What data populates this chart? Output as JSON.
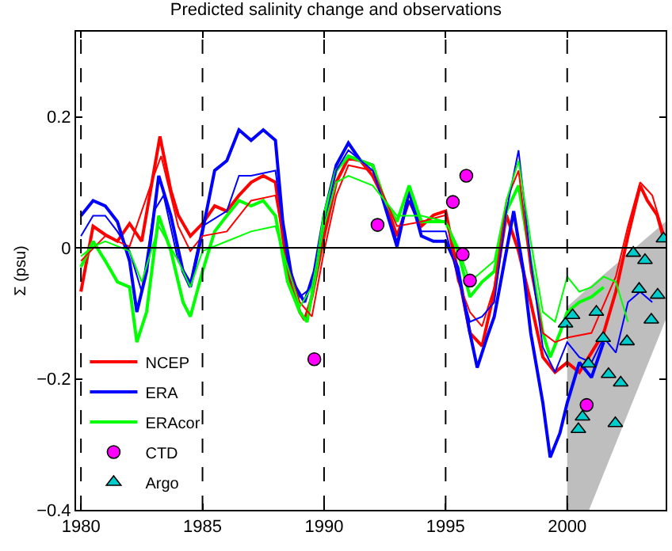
{
  "chart_data": {
    "type": "line",
    "title": "Predicted salinity change and observations",
    "ylabel": "Σ (psu)",
    "xlim": [
      1979.8,
      2004.05
    ],
    "xticks": [
      1980,
      1985,
      1990,
      1995,
      2000
    ],
    "ylim": [
      -0.4,
      0.33
    ],
    "yticks": [
      {
        "value": -0.4,
        "label": "−0.4"
      },
      {
        "value": -0.2,
        "label": "−0.2"
      },
      0,
      0.2
    ],
    "grid": false,
    "legend": "bottom left",
    "marker": "none",
    "line_style": "solid",
    "ref_lines": [
      {
        "axis": "y",
        "value": 0,
        "color": "#000000",
        "line_style": "solid"
      },
      {
        "axis": "x",
        "value": 1980,
        "color": "#000000",
        "line_style": "dashed"
      },
      {
        "axis": "x",
        "value": 1985,
        "color": "#000000",
        "line_style": "dashed"
      },
      {
        "axis": "x",
        "value": 1990,
        "color": "#000000",
        "line_style": "dashed"
      },
      {
        "axis": "x",
        "value": 1995,
        "color": "#000000",
        "line_style": "dashed"
      },
      {
        "axis": "x",
        "value": 2000,
        "color": "#000000",
        "line_style": "dashed"
      }
    ],
    "series": [
      {
        "type": "area",
        "color": "#bebebe",
        "x": [
          2000,
          2000.9,
          2004.05
        ],
        "values": [
          null,
          null,
          null
        ],
        "lower": [
          -0.4,
          -0.4,
          -0.11
        ],
        "upper": [
          -0.09,
          -0.06,
          0.04
        ]
      },
      {
        "name": "NCEP",
        "color": "#ff0000",
        "x": [
          1980,
          1980.5,
          1981,
          1981.5,
          1982,
          1982.5,
          1983.25,
          1983.7,
          1984,
          1984.5,
          1985,
          1985.5,
          1986,
          1986.5,
          1987,
          1987.5,
          1988,
          1988.5,
          1989,
          1989.2,
          1989.5,
          1990,
          1990.5,
          1991,
          1991.5,
          1992,
          1992.5,
          1993,
          1993.5,
          1994,
          1994.5,
          1995,
          1995.5,
          1996,
          1996.5,
          1997,
          1997.5,
          1998,
          1998.5,
          1999,
          1999.5,
          2000,
          2000.5,
          2001,
          2001.5,
          2002,
          2002.5,
          2003,
          2003.3,
          2003.7,
          2004
        ],
        "values": [
          -0.067,
          0.033,
          0.02,
          0.01,
          0.037,
          0.01,
          0.17,
          0.087,
          0.05,
          0.018,
          0.037,
          0.064,
          0.056,
          0.08,
          0.1,
          0.11,
          0.1,
          -0.036,
          -0.098,
          -0.11,
          -0.075,
          0.018,
          0.1,
          0.137,
          0.133,
          0.11,
          0.072,
          0.018,
          0.072,
          0.033,
          0.05,
          0.056,
          -0.036,
          -0.13,
          -0.15,
          -0.067,
          0.05,
          -0.005,
          -0.083,
          -0.167,
          -0.19,
          -0.175,
          -0.19,
          -0.16,
          -0.13,
          -0.067,
          0.018,
          0.095,
          0.072,
          0.05,
          0.01
        ]
      },
      {
        "name": "ERA",
        "color": "#0000ff",
        "x": [
          1980,
          1980.5,
          1981,
          1981.5,
          1982,
          1982.3,
          1982.7,
          1983.2,
          1983.7,
          1984.2,
          1984.5,
          1985,
          1985.5,
          1986,
          1986.5,
          1987,
          1987.5,
          1988,
          1988.3,
          1988.7,
          1989.2,
          1989.6,
          1990,
          1990.5,
          1991,
          1991.5,
          1992,
          1992.5,
          1993,
          1993.5,
          1994,
          1994.5,
          1995,
          1995.5,
          1996,
          1996.3,
          1996.7,
          1997,
          1997.5,
          1997.8,
          1998.2,
          1998.5,
          1999,
          1999.3,
          1999.7,
          2000,
          2000.5,
          2001,
          2001.5
        ],
        "values": [
          0.049,
          0.072,
          0.064,
          0.04,
          -0.02,
          -0.098,
          -0.036,
          0.11,
          0.049,
          -0.036,
          -0.06,
          0.025,
          0.118,
          0.133,
          0.18,
          0.164,
          0.18,
          0.164,
          0.04,
          -0.052,
          -0.083,
          -0.036,
          0.049,
          0.126,
          0.16,
          0.133,
          0.126,
          0.064,
          0.002,
          0.087,
          0.018,
          0.01,
          0.01,
          -0.03,
          -0.13,
          -0.183,
          -0.137,
          -0.105,
          -0.005,
          0.056,
          -0.036,
          -0.13,
          -0.237,
          -0.32,
          -0.283,
          -0.237,
          -0.175,
          -0.198,
          -0.144
        ]
      },
      {
        "name": "ERAcor",
        "color": "#00ff00",
        "x": [
          1980,
          1980.5,
          1981,
          1981.5,
          1982,
          1982.3,
          1982.7,
          1983.2,
          1983.7,
          1984.2,
          1984.5,
          1985,
          1985.5,
          1986,
          1986.5,
          1987,
          1987.5,
          1988,
          1988.5,
          1989,
          1989.3,
          1989.7,
          1990,
          1990.5,
          1991,
          1992,
          1992.5,
          1993,
          1993.5,
          1994,
          1995,
          1995.5,
          1996,
          1996.5,
          1997,
          1997.5,
          1998,
          1998.5,
          1999,
          1999.3,
          1999.7,
          2000,
          2000.5,
          2001,
          2001.5
        ],
        "values": [
          -0.029,
          0.01,
          -0.02,
          -0.052,
          -0.06,
          -0.144,
          -0.098,
          0.049,
          -0.005,
          -0.083,
          -0.105,
          -0.036,
          0.025,
          0.049,
          0.072,
          0.064,
          0.072,
          0.049,
          -0.052,
          -0.098,
          -0.113,
          -0.029,
          0.049,
          0.118,
          0.14,
          0.126,
          0.072,
          0.04,
          0.095,
          0.04,
          0.04,
          -0.005,
          -0.075,
          -0.052,
          -0.036,
          0.056,
          0.095,
          -0.02,
          -0.13,
          -0.167,
          -0.13,
          -0.098,
          -0.083,
          -0.075,
          -0.06
        ]
      },
      {
        "color": "#ff0000",
        "x": [
          1980,
          1981,
          1982,
          1983,
          1983.3,
          1984,
          1984.5,
          1985,
          1986,
          1987,
          1988,
          1988.5,
          1989,
          1989.5,
          1990,
          1990.5,
          1991,
          1992,
          1993,
          1994,
          1995,
          1995.5,
          1996,
          1996.5,
          1997,
          1997.5,
          1998,
          1998.5,
          1999,
          1999.5,
          2000,
          2001,
          2002,
          2002.5,
          2003,
          2003.5,
          2004
        ],
        "values": [
          -0.02,
          0.018,
          0.002,
          0.11,
          0.14,
          0.033,
          -0.005,
          0.018,
          0.025,
          0.072,
          0.08,
          -0.02,
          -0.083,
          -0.105,
          -0.005,
          0.08,
          0.126,
          0.118,
          0.033,
          0.04,
          0.05,
          -0.05,
          -0.098,
          -0.12,
          -0.06,
          0.072,
          0.118,
          -0.036,
          -0.13,
          -0.144,
          -0.137,
          -0.13,
          -0.044,
          0.033,
          0.1,
          0.08,
          0.018
        ]
      },
      {
        "color": "#0000ff",
        "x": [
          1980,
          1980.5,
          1981,
          1981.5,
          1982,
          1982.5,
          1983,
          1983.4,
          1984,
          1984.5,
          1985,
          1986,
          1986.5,
          1987,
          1988,
          1988.5,
          1989,
          1989.5,
          1990,
          1990.5,
          1991,
          1992,
          1993,
          1993.5,
          1994,
          1995,
          1995.5,
          1996,
          1996.5,
          1997,
          1997.5,
          1998,
          1998.5,
          1999,
          1999.5,
          2000,
          2000.5,
          2001,
          2001.5,
          2002,
          2002.5,
          2003,
          2003.5
        ],
        "values": [
          0.018,
          0.049,
          0.049,
          0.025,
          -0.005,
          -0.067,
          0.056,
          0.08,
          -0.02,
          -0.052,
          0.033,
          0.056,
          0.11,
          0.11,
          0.118,
          -0.02,
          -0.075,
          -0.06,
          0.033,
          0.118,
          0.149,
          0.118,
          0.01,
          0.072,
          0.025,
          0.025,
          -0.044,
          -0.113,
          -0.105,
          -0.083,
          0.056,
          0.149,
          -0.02,
          -0.152,
          -0.19,
          -0.144,
          -0.167,
          -0.175,
          -0.137,
          -0.16,
          -0.083,
          -0.067,
          -0.083
        ]
      },
      {
        "color": "#00ff00",
        "x": [
          1980,
          1980.5,
          1981,
          1982,
          1982.5,
          1983.2,
          1984,
          1984.5,
          1985,
          1986,
          1987,
          1988,
          1988.5,
          1989,
          1989.5,
          1990,
          1990.5,
          1991,
          1992,
          1993,
          1994,
          1995,
          1995.5,
          1996,
          1996.5,
          1997,
          1997.5,
          1998,
          1998.5,
          1999,
          1999.5,
          2000,
          2000.5,
          2001,
          2001.5,
          2002,
          2002.5
        ],
        "values": [
          -0.013,
          0.002,
          0.01,
          -0.005,
          -0.052,
          0.033,
          -0.02,
          -0.06,
          -0.005,
          0.01,
          0.025,
          0.033,
          -0.029,
          -0.09,
          -0.06,
          0.033,
          0.1,
          0.11,
          0.095,
          0.049,
          0.049,
          0.04,
          0.002,
          -0.052,
          -0.036,
          -0.02,
          0.072,
          0.133,
          0.01,
          -0.098,
          -0.113,
          -0.044,
          -0.067,
          -0.06,
          -0.044,
          -0.052,
          -0.113
        ]
      },
      {
        "name": "CTD",
        "type": "scatter",
        "marker": "circle",
        "color": "#ff00ff",
        "x": [
          1989.6,
          1992.2,
          1995.3,
          1995.85,
          1995.7,
          1996,
          2000.8
        ],
        "values": [
          -0.17,
          0.035,
          0.07,
          0.11,
          -0.01,
          -0.05,
          -0.24
        ]
      },
      {
        "name": "Argo",
        "type": "scatter",
        "marker": "triangle",
        "color": "#00cccc",
        "x": [
          1999.93,
          2000.22,
          2001.2,
          2001.48,
          2000.87,
          2000.63,
          2000.46,
          2001.7,
          2002.2,
          2001.98,
          2002.46,
          2002.72,
          2003.2,
          2002.96,
          2003.46,
          2003.72,
          2003.96
        ],
        "values": [
          -0.116,
          -0.103,
          -0.098,
          -0.138,
          -0.177,
          -0.258,
          -0.277,
          -0.193,
          -0.206,
          -0.268,
          -0.143,
          -0.008,
          -0.019,
          -0.063,
          -0.11,
          -0.072,
          0.014
        ]
      }
    ]
  }
}
